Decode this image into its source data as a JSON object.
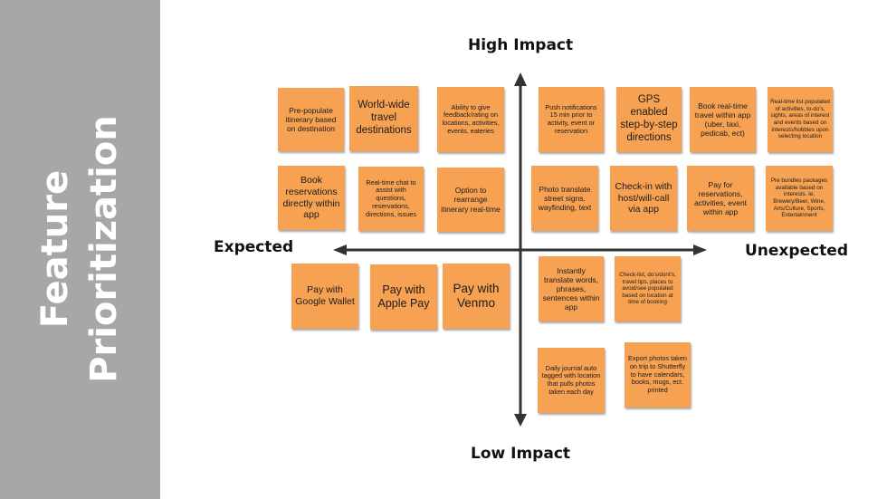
{
  "title_lines": [
    "Feature",
    "Prioritization"
  ],
  "axes": {
    "top": "High Impact",
    "bottom": "Low Impact",
    "left": "Expected",
    "right": "Unexpected"
  },
  "notes": [
    {
      "id": "prepopulate-itinerary",
      "text": "Pre-populate itinerary based on destination"
    },
    {
      "id": "world-wide-destinations",
      "text": "World-wide travel destinations"
    },
    {
      "id": "feedback-rating",
      "text": "Ability to give feedback/rating on locations, activities, events, eateries"
    },
    {
      "id": "push-notifications",
      "text": "Push notifications 15 min prior to activity, event or reservation"
    },
    {
      "id": "gps-directions",
      "text": "GPS enabled step-by-step directions"
    },
    {
      "id": "book-real-time-travel",
      "text": "Book real-time travel within app (uber, taxi, pedicab, ect)"
    },
    {
      "id": "real-time-activity-list",
      "text": "Real-time list populated of activities, to-do's, sights, areas of interest and events based on interests/hobbies upon selecting location"
    },
    {
      "id": "book-reservations",
      "text": "Book reservations directly within app"
    },
    {
      "id": "real-time-chat",
      "text": "Real-time chat to assist with questions, reservations, directions, issues"
    },
    {
      "id": "rearrange-itinerary",
      "text": "Option to rearrange itinerary real-time"
    },
    {
      "id": "photo-translate",
      "text": "Photo translate street signs, wayfinding, text"
    },
    {
      "id": "check-in-host",
      "text": "Check-in with host/will-call via app"
    },
    {
      "id": "pay-for-reservations",
      "text": "Pay for reservations, activities, event within app"
    },
    {
      "id": "pre-bundle-packages",
      "text": "Pre bundles packages available based on interests. Ie, Brewery/Beer, Wine, Arts/Culture, Sports, Entertainment"
    },
    {
      "id": "pay-google-wallet",
      "text": "Pay with Google Wallet"
    },
    {
      "id": "pay-apple-pay",
      "text": "Pay with Apple Pay"
    },
    {
      "id": "pay-venmo",
      "text": "Pay with Venmo"
    },
    {
      "id": "instantly-translate",
      "text": "Instantly translate words, phrases, sentences within app"
    },
    {
      "id": "checklist-travel-tips",
      "text": "Check-list, do's/dont's, travel tips, places to avoid/see populated based on location at time of booking"
    },
    {
      "id": "daily-journal",
      "text": "Daily journal auto tagged with location that pulls photos taken each day"
    },
    {
      "id": "export-photos",
      "text": "Export photos taken on trip to Shutterfly to have calendars, books, mugs, ect. printed"
    }
  ],
  "colors": {
    "note": "#f7a252",
    "sidebar": "#a7a7a7",
    "axis": "#333333"
  }
}
